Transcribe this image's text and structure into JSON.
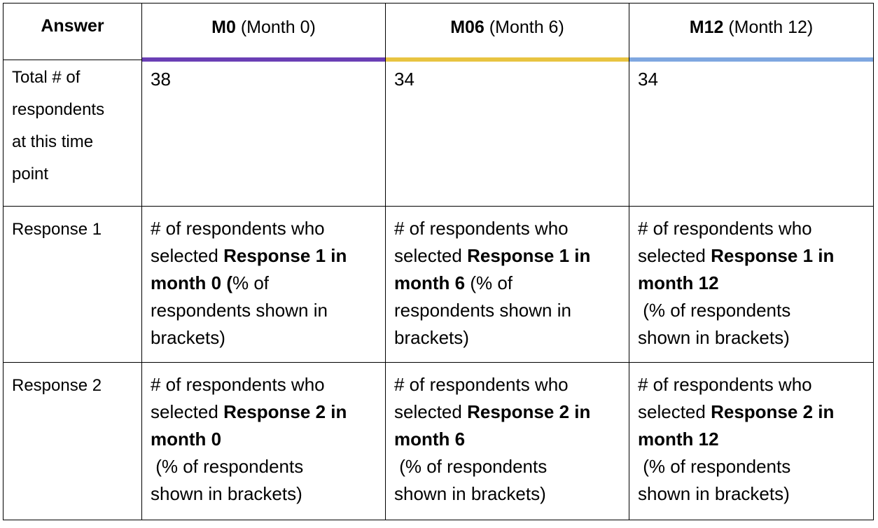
{
  "header": {
    "answer": "Answer",
    "columns": [
      {
        "code": "M0",
        "label": "(Month 0)",
        "color": "#6a3fb5"
      },
      {
        "code": "M06",
        "label": "(Month 6)",
        "color": "#e8c441"
      },
      {
        "code": "M12",
        "label": "(Month 12)",
        "color": "#7fa7e0"
      }
    ]
  },
  "rows": {
    "total": {
      "label": [
        "Total # of",
        "respondents",
        "at this time",
        "point"
      ],
      "values": [
        "38",
        "34",
        "34"
      ]
    },
    "response1": {
      "label": "Response 1",
      "cells": [
        {
          "l1": "# of respondents who",
          "l2a": "selected ",
          "l2b": "Response 1 in",
          "l3a": "month 0 (",
          "l3b": "% of",
          "l4": "respondents shown in",
          "l5": "brackets)"
        },
        {
          "l1": "# of respondents who",
          "l2a": "selected ",
          "l2b": "Response 1 in",
          "l3a": "month 6",
          "l3b": " (% of",
          "l4": "respondents shown in",
          "l5": "brackets)"
        },
        {
          "l1": "# of respondents who",
          "l2a": "selected ",
          "l2b": "Response 1 in",
          "l3a": "month 12",
          "l3b": "",
          "l4": " (% of respondents",
          "l5": "shown in brackets)"
        }
      ]
    },
    "response2": {
      "label": "Response 2",
      "cells": [
        {
          "l1": "# of respondents who",
          "l2a": "selected ",
          "l2b": "Response 2 in",
          "l3a": "month 0",
          "l4": " (% of respondents",
          "l5": "shown in brackets)"
        },
        {
          "l1": "# of respondents who",
          "l2a": "selected ",
          "l2b": "Response 2 in",
          "l3a": "month 6",
          "l4": " (% of respondents",
          "l5": "shown in brackets)"
        },
        {
          "l1": "# of respondents who",
          "l2a": "selected ",
          "l2b": "Response 2 in",
          "l3a": "month 12",
          "l4": " (% of respondents",
          "l5": "shown in brackets)"
        }
      ]
    }
  }
}
